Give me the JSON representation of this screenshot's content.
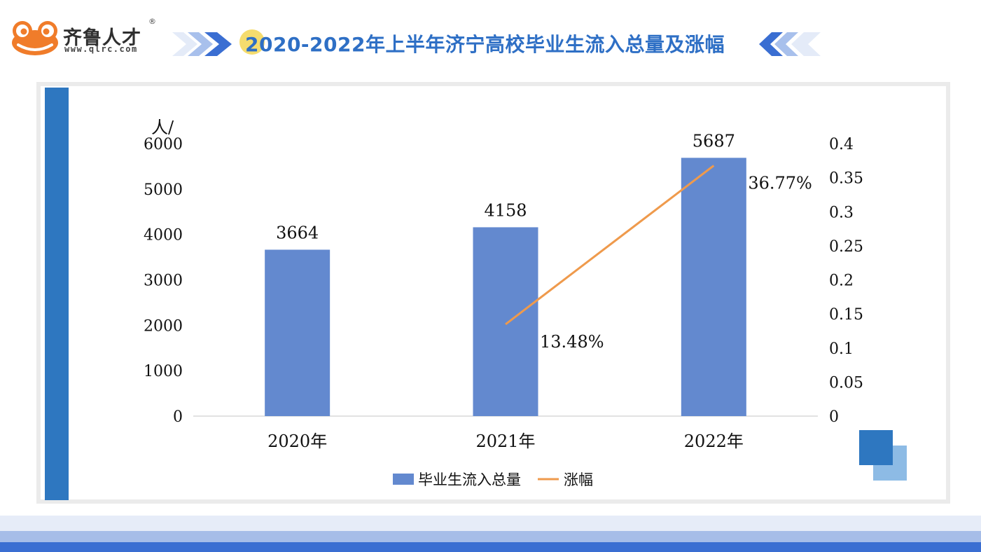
{
  "header": {
    "logo_name": "齐鲁人才",
    "logo_reg": "®",
    "logo_url": "www.qlrc.com",
    "title": "2020-2022年上半年济宁高校毕业生流入总量及涨幅"
  },
  "colors": {
    "bar": "#6389cf",
    "line": "#ef9a4c",
    "accent": "#2e77c0",
    "title": "#2e6fc5"
  },
  "chart_data": {
    "type": "bar",
    "categories": [
      "2020年",
      "2021年",
      "2022年"
    ],
    "series": [
      {
        "name": "毕业生流入总量",
        "type": "bar",
        "axis": "left",
        "values": [
          3664,
          4158,
          5687
        ],
        "labels": [
          "3664",
          "4158",
          "5687"
        ]
      },
      {
        "name": "涨幅",
        "type": "line",
        "axis": "right",
        "values": [
          null,
          0.1348,
          0.3677
        ],
        "labels": [
          "",
          "13.48%",
          "36.77%"
        ]
      }
    ],
    "ylabel": "人/",
    "ylim": [
      0,
      6000
    ],
    "yticks": [
      "0",
      "1000",
      "2000",
      "3000",
      "4000",
      "5000",
      "6000"
    ],
    "y2lim": [
      0,
      0.4
    ],
    "y2ticks": [
      "0",
      "0.05",
      "0.1",
      "0.15",
      "0.2",
      "0.25",
      "0.3",
      "0.35",
      "0.4"
    ],
    "legend_position": "bottom",
    "grid": false
  }
}
